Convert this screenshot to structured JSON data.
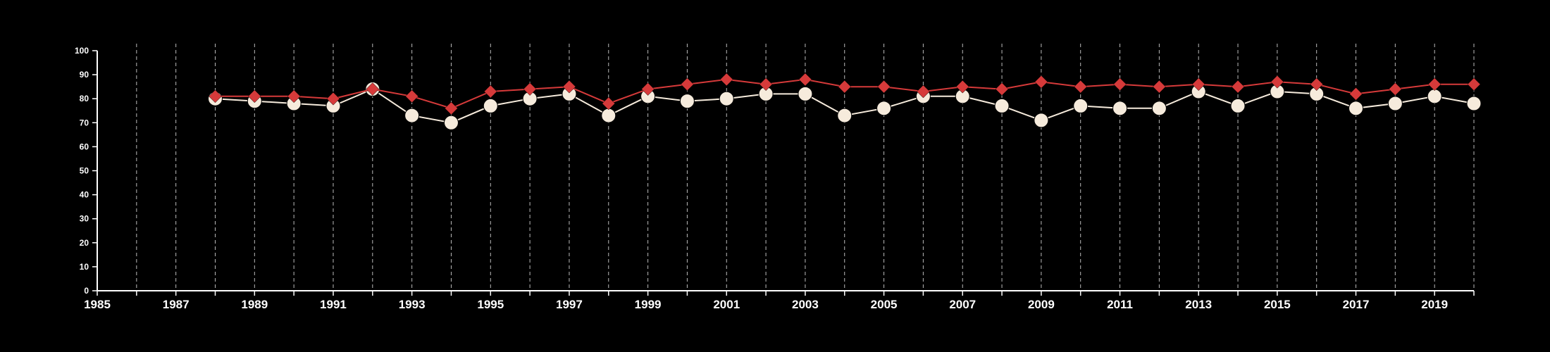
{
  "chart_data": {
    "type": "line",
    "title": "",
    "xlabel": "",
    "ylabel": "",
    "xlim": [
      1985,
      2020
    ],
    "ylim": [
      0,
      100
    ],
    "x_ticks": [
      1985,
      1987,
      1989,
      1991,
      1993,
      1995,
      1997,
      1999,
      2001,
      2003,
      2005,
      2007,
      2009,
      2011,
      2013,
      2015,
      2017,
      2019
    ],
    "y_ticks": [
      0,
      10,
      20,
      30,
      40,
      50,
      60,
      70,
      80,
      90,
      100
    ],
    "grid": "vertical dashed lines at every year",
    "legend": "none",
    "series": [
      {
        "marker": "diamond",
        "color": "#d63a3a",
        "x": [
          1988,
          1989,
          1990,
          1991,
          1992,
          1993,
          1994,
          1995,
          1996,
          1997,
          1998,
          1999,
          2000,
          2001,
          2002,
          2003,
          2004,
          2005,
          2006,
          2007,
          2008,
          2009,
          2010,
          2011,
          2012,
          2013,
          2014,
          2015,
          2016,
          2017,
          2018,
          2019,
          2020
        ],
        "values": [
          81,
          81,
          81,
          80,
          84,
          81,
          76,
          83,
          84,
          85,
          78,
          84,
          86,
          88,
          86,
          88,
          85,
          85,
          83,
          85,
          84,
          87,
          85,
          86,
          85,
          86,
          85,
          87,
          86,
          82,
          84,
          86,
          86
        ]
      },
      {
        "marker": "circle",
        "color": "#f6ebdc",
        "x": [
          1988,
          1989,
          1990,
          1991,
          1992,
          1993,
          1994,
          1995,
          1996,
          1997,
          1998,
          1999,
          2000,
          2001,
          2002,
          2003,
          2004,
          2005,
          2006,
          2007,
          2008,
          2009,
          2010,
          2011,
          2012,
          2013,
          2014,
          2015,
          2016,
          2017,
          2018,
          2019,
          2020
        ],
        "values": [
          80,
          79,
          78,
          77,
          84,
          73,
          70,
          77,
          80,
          82,
          73,
          81,
          79,
          80,
          82,
          82,
          73,
          76,
          81,
          81,
          77,
          71,
          77,
          76,
          76,
          83,
          77,
          83,
          82,
          76,
          78,
          81,
          78
        ]
      }
    ]
  }
}
